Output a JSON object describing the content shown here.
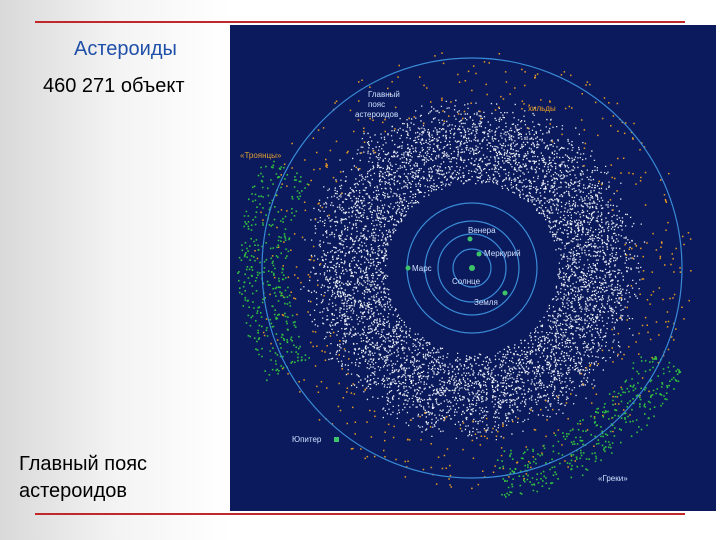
{
  "slide": {
    "title": "Астероиды",
    "count": "460 271 объект",
    "caption": "Главный пояс астероидов"
  },
  "image": {
    "labels": {
      "belt": "Главный пояс астероидов",
      "hildas": "хильды",
      "trojans": "«Троянцы»",
      "venus": "Венера",
      "mercury": "Меркурий",
      "mars": "Марс",
      "sun": "Солнце",
      "earth": "Земля",
      "jupiter": "Юпитер",
      "greeks": "«Греки»"
    }
  }
}
